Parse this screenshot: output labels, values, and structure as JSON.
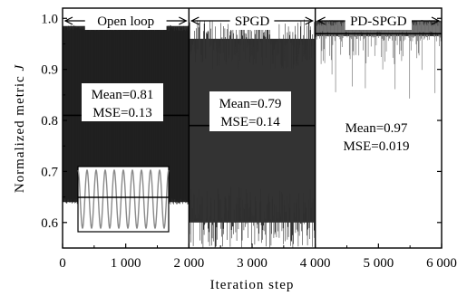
{
  "chart_data": {
    "type": "line",
    "xlabel": "Iteration step",
    "ylabel": "Normalized metric",
    "ylabel_symbol": "J",
    "xlim": [
      0,
      6000
    ],
    "ylim": [
      0.55,
      1.02
    ],
    "x_ticks": [
      0,
      1000,
      2000,
      3000,
      4000,
      5000,
      6000
    ],
    "x_tick_labels": [
      "0",
      "1 000",
      "2 000",
      "3 000",
      "4 000",
      "5 000",
      "6 000"
    ],
    "y_ticks": [
      0.6,
      0.7,
      0.8,
      0.9,
      1.0
    ],
    "y_tick_labels": [
      "0.6",
      "0.7",
      "0.8",
      "0.9",
      "1.0"
    ],
    "grid": false,
    "regions": [
      {
        "label": "Open loop",
        "x_start": 0,
        "x_end": 2000,
        "mean": 0.81,
        "mean_text": "Mean=0.81",
        "mse_text": "MSE=0.13",
        "signal_min": 0.63,
        "signal_max": 0.99
      },
      {
        "label": "SPGD",
        "x_start": 2000,
        "x_end": 4000,
        "mean": 0.79,
        "mean_text": "Mean=0.79",
        "mse_text": "MSE=0.14",
        "signal_min": 0.55,
        "signal_max": 1.0
      },
      {
        "label": "PD-SPGD",
        "x_start": 4000,
        "x_end": 6000,
        "mean": 0.97,
        "mean_text": "Mean=0.97",
        "mse_text": "MSE=0.019",
        "signal_min": 0.83,
        "signal_max": 1.0
      }
    ],
    "inset": {
      "description_series": "sinusoid",
      "mean": 0.81
    },
    "colors": {
      "signal": "#3a3a3a",
      "mean_line": "#000000",
      "inset_signal": "#8a8a8a"
    }
  }
}
